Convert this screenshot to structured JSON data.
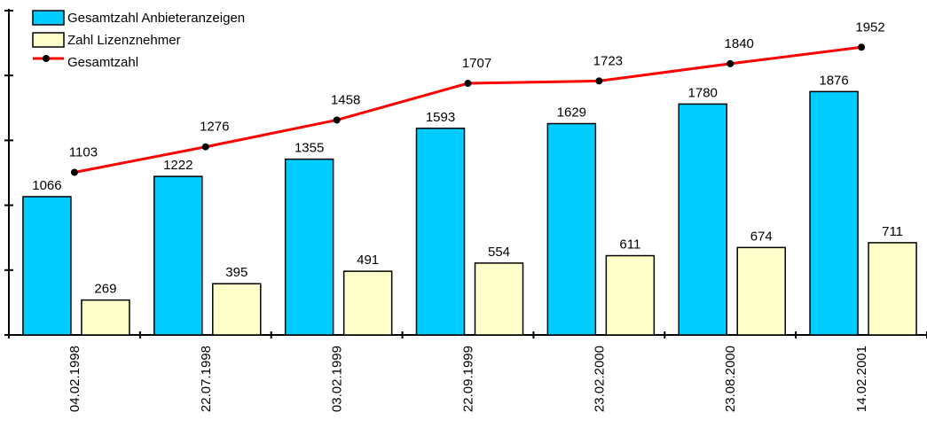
{
  "chart_data": {
    "type": "bar_line",
    "categories": [
      "04.02.1998",
      "22.07.1998",
      "03.02.1999",
      "22.09.1999",
      "23.02.2000",
      "23.08.2000",
      "14.02.2001"
    ],
    "series": [
      {
        "name": "Gesamtzahl Anbieteranzeigen",
        "type": "bar",
        "color": "#00ccff",
        "values": [
          1066,
          1222,
          1355,
          1593,
          1629,
          1780,
          1876
        ]
      },
      {
        "name": "Zahl Lizenznehmer",
        "type": "bar",
        "color": "#ffffcc",
        "values": [
          269,
          395,
          491,
          554,
          611,
          674,
          711
        ]
      },
      {
        "name": "Gesamtzahl",
        "type": "line",
        "axis": "y2",
        "color": "#ff0000",
        "values": [
          1103,
          1276,
          1458,
          1707,
          1723,
          1840,
          1952
        ]
      }
    ],
    "ylim": [
      0,
      2500
    ],
    "yticks": [
      0,
      500,
      1000,
      1500,
      2000,
      2500
    ],
    "y2lim": [
      0,
      2200
    ],
    "y2ticks": [],
    "legend": "top-left"
  }
}
